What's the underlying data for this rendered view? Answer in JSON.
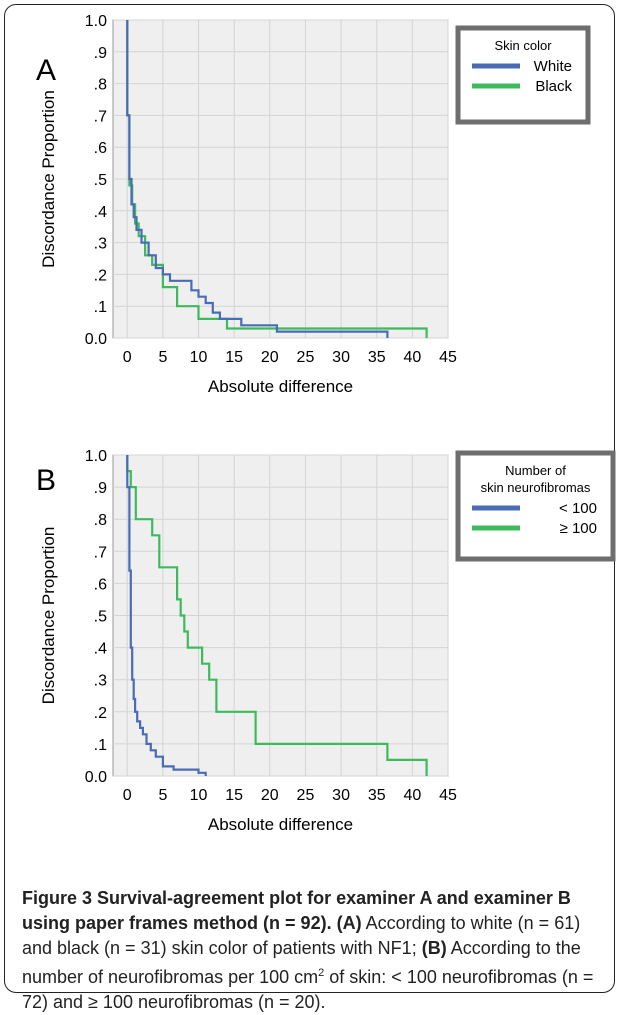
{
  "chart_data": [
    {
      "type": "line",
      "panel_letter": "A",
      "xlabel": "Absolute difference",
      "ylabel": "Discordance Proportion",
      "xlim": [
        -2,
        45
      ],
      "ylim": [
        0,
        1
      ],
      "xticks": [
        0,
        5,
        10,
        15,
        20,
        25,
        30,
        35,
        40,
        45
      ],
      "yticks": [
        {
          "value": 1.0,
          "label": "1.0"
        },
        {
          "value": 0.9,
          "label": ".9"
        },
        {
          "value": 0.8,
          "label": ".8"
        },
        {
          "value": 0.7,
          "label": ".7"
        },
        {
          "value": 0.6,
          "label": ".6"
        },
        {
          "value": 0.5,
          "label": ".5"
        },
        {
          "value": 0.4,
          "label": ".4"
        },
        {
          "value": 0.3,
          "label": ".3"
        },
        {
          "value": 0.2,
          "label": ".2"
        },
        {
          "value": 0.1,
          "label": ".1"
        },
        {
          "value": 0.0,
          "label": "0.0"
        }
      ],
      "grid": true,
      "legend": {
        "title": "Skin color",
        "position": "top-right"
      },
      "series": [
        {
          "name": "White",
          "color": "#4a6bb5",
          "x": [
            0,
            0,
            0.3,
            0.3,
            0.6,
            0.6,
            0.9,
            0.9,
            1.3,
            1.3,
            2,
            2,
            3,
            3,
            4,
            4,
            5,
            5,
            6,
            6,
            9,
            9,
            10,
            10,
            11,
            11,
            12,
            12,
            13,
            13,
            16,
            16,
            21,
            21,
            36.5,
            36.5
          ],
          "y": [
            1.0,
            0.7,
            0.7,
            0.5,
            0.5,
            0.42,
            0.42,
            0.38,
            0.38,
            0.34,
            0.34,
            0.3,
            0.3,
            0.26,
            0.26,
            0.22,
            0.22,
            0.2,
            0.2,
            0.18,
            0.18,
            0.15,
            0.15,
            0.13,
            0.13,
            0.11,
            0.11,
            0.08,
            0.08,
            0.06,
            0.06,
            0.04,
            0.04,
            0.02,
            0.02,
            0.0
          ]
        },
        {
          "name": "Black",
          "color": "#3dbb5c",
          "x": [
            0,
            0,
            0.3,
            0.3,
            0.7,
            0.7,
            1.1,
            1.1,
            1.6,
            1.6,
            2.5,
            2.5,
            3.5,
            3.5,
            5,
            5,
            7,
            7,
            10,
            10,
            12,
            12,
            14,
            14,
            18,
            18,
            42,
            42
          ],
          "y": [
            1.0,
            0.7,
            0.7,
            0.48,
            0.48,
            0.42,
            0.42,
            0.36,
            0.36,
            0.32,
            0.32,
            0.26,
            0.26,
            0.23,
            0.23,
            0.16,
            0.16,
            0.1,
            0.1,
            0.06,
            0.06,
            0.06,
            0.06,
            0.03,
            0.03,
            0.03,
            0.03,
            0.0
          ]
        }
      ]
    },
    {
      "type": "line",
      "panel_letter": "B",
      "xlabel": "Absolute difference",
      "ylabel": "Discordance Proportion",
      "xlim": [
        -2,
        45
      ],
      "ylim": [
        0,
        1
      ],
      "xticks": [
        0,
        5,
        10,
        15,
        20,
        25,
        30,
        35,
        40,
        45
      ],
      "yticks": [
        {
          "value": 1.0,
          "label": "1.0"
        },
        {
          "value": 0.9,
          "label": ".9"
        },
        {
          "value": 0.8,
          "label": ".8"
        },
        {
          "value": 0.7,
          "label": ".7"
        },
        {
          "value": 0.6,
          "label": ".6"
        },
        {
          "value": 0.5,
          "label": ".5"
        },
        {
          "value": 0.4,
          "label": ".4"
        },
        {
          "value": 0.3,
          "label": ".3"
        },
        {
          "value": 0.2,
          "label": ".2"
        },
        {
          "value": 0.1,
          "label": ".1"
        },
        {
          "value": 0.0,
          "label": "0.0"
        }
      ],
      "grid": true,
      "legend": {
        "title": "Number of skin neurofibromas",
        "title_lines": [
          "Number of",
          "skin neurofibromas"
        ],
        "position": "top-right"
      },
      "series": [
        {
          "name": "< 100",
          "color": "#4a6bb5",
          "x": [
            0,
            0,
            0.3,
            0.3,
            0.5,
            0.5,
            0.7,
            0.7,
            0.9,
            0.9,
            1.1,
            1.1,
            1.4,
            1.4,
            1.8,
            1.8,
            2.2,
            2.2,
            2.7,
            2.7,
            3.3,
            3.3,
            4,
            4,
            5,
            5,
            6.5,
            6.5,
            10,
            10,
            11,
            11
          ],
          "y": [
            1.0,
            0.9,
            0.9,
            0.64,
            0.64,
            0.4,
            0.4,
            0.3,
            0.3,
            0.24,
            0.24,
            0.2,
            0.2,
            0.17,
            0.17,
            0.15,
            0.15,
            0.13,
            0.13,
            0.1,
            0.1,
            0.08,
            0.08,
            0.06,
            0.06,
            0.03,
            0.03,
            0.02,
            0.02,
            0.01,
            0.01,
            0.0
          ]
        },
        {
          "name": "≥ 100",
          "color": "#3dbb5c",
          "x": [
            0,
            0,
            0.5,
            0.5,
            1.2,
            1.2,
            3.5,
            3.5,
            4.5,
            4.5,
            7,
            7,
            7.5,
            7.5,
            8,
            8,
            8.5,
            8.5,
            10.5,
            10.5,
            11.5,
            11.5,
            12.5,
            12.5,
            18,
            18,
            20.5,
            20.5,
            36.5,
            36.5,
            42,
            42
          ],
          "y": [
            1.0,
            0.95,
            0.95,
            0.9,
            0.9,
            0.8,
            0.8,
            0.75,
            0.75,
            0.65,
            0.65,
            0.55,
            0.55,
            0.5,
            0.5,
            0.45,
            0.45,
            0.4,
            0.4,
            0.35,
            0.35,
            0.3,
            0.3,
            0.2,
            0.2,
            0.1,
            0.1,
            0.1,
            0.1,
            0.05,
            0.05,
            0.0
          ]
        }
      ]
    }
  ],
  "caption": {
    "title": "Figure 3 Survival-agreement plot for examiner A and examiner B using paper frames method (n = 92).",
    "tag_a": "(A)",
    "text_a": " According to white (n = 61) and black (n = 31) skin color of patients with NF1; ",
    "tag_b": "(B)",
    "text_b_1": " According to the number of neurofibromas per 100 cm",
    "text_b_sup": "2",
    "text_b_2": " of skin: < 100 neurofibromas (n = 72) and ≥ 100 neurofibromas (n = 20)."
  }
}
